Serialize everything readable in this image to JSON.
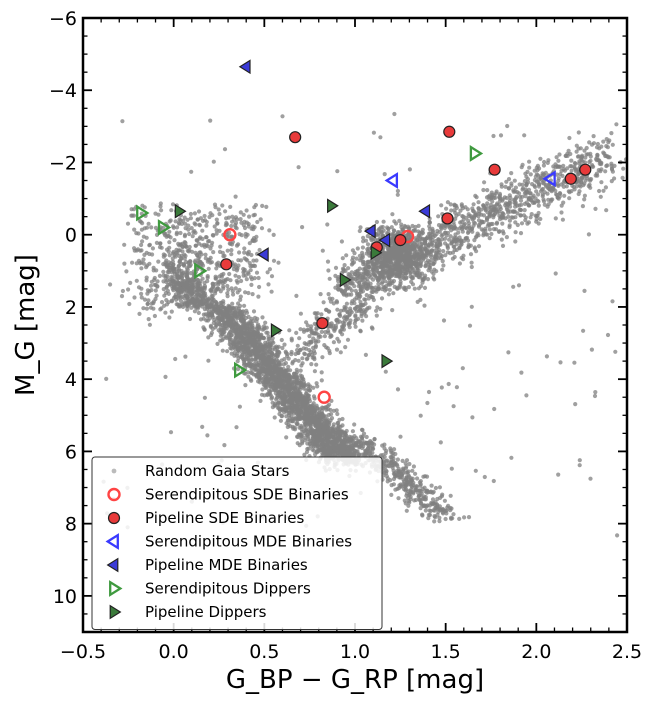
{
  "chart_data": {
    "type": "scatter",
    "title": "",
    "xlabel": "G_BP − G_RP [mag]",
    "ylabel": "M_G [mag]",
    "xlim": [
      -0.5,
      2.5
    ],
    "ylim": [
      11,
      -6
    ],
    "y_inverted": true,
    "grid": false,
    "legend_position": "lower-left",
    "xticks": [
      -0.5,
      0.0,
      0.5,
      1.0,
      1.5,
      2.0,
      2.5
    ],
    "xtick_labels": [
      "−0.5",
      "0.0",
      "0.5",
      "1.0",
      "1.5",
      "2.0",
      "2.5"
    ],
    "yticks": [
      -6,
      -4,
      -2,
      0,
      2,
      4,
      6,
      8,
      10
    ],
    "ytick_labels": [
      "−6",
      "−4",
      "−2",
      "0",
      "2",
      "4",
      "6",
      "8",
      "10"
    ],
    "background_population": {
      "name": "Random Gaia Stars",
      "color": "#808080",
      "description_regions": [
        {
          "label": "main sequence",
          "path": [
            [
              -0.05,
              0.2
            ],
            [
              0.2,
              1.2
            ],
            [
              0.5,
              2.6
            ],
            [
              0.7,
              3.8
            ],
            [
              0.85,
              4.6
            ],
            [
              1.05,
              5.8
            ],
            [
              1.3,
              6.8
            ],
            [
              1.6,
              7.4
            ]
          ]
        },
        {
          "label": "red clump / giant branch",
          "path": [
            [
              0.95,
              2.0
            ],
            [
              1.15,
              0.8
            ],
            [
              1.35,
              0.0
            ],
            [
              1.55,
              -0.8
            ],
            [
              1.8,
              -1.6
            ],
            [
              2.1,
              -2.0
            ],
            [
              2.45,
              -2.4
            ]
          ]
        },
        {
          "label": "upper main sequence",
          "path": [
            [
              -0.25,
              0.5
            ],
            [
              0.0,
              0.0
            ],
            [
              0.3,
              -0.6
            ]
          ]
        }
      ]
    },
    "series": [
      {
        "name": "Serendipitous SDE Binaries",
        "marker": "circle-open",
        "color": "#ff4444",
        "points": [
          [
            0.31,
            0.0
          ],
          [
            1.29,
            0.05
          ],
          [
            0.83,
            4.5
          ]
        ]
      },
      {
        "name": "Pipeline SDE Binaries",
        "marker": "circle-filled",
        "color": "#e83a3a",
        "points": [
          [
            0.67,
            -2.7
          ],
          [
            1.52,
            -2.85
          ],
          [
            1.77,
            -1.8
          ],
          [
            2.19,
            -1.55
          ],
          [
            2.27,
            -1.8
          ],
          [
            1.51,
            -0.45
          ],
          [
            1.25,
            0.15
          ],
          [
            1.12,
            0.35
          ],
          [
            0.29,
            0.82
          ],
          [
            0.82,
            2.45
          ]
        ]
      },
      {
        "name": "Serendipitous MDE Binaries",
        "marker": "triangle-left-open",
        "color": "#3a3aff",
        "points": [
          [
            1.21,
            -1.5
          ],
          [
            2.08,
            -1.55
          ]
        ]
      },
      {
        "name": "Pipeline MDE Binaries",
        "marker": "triangle-left-filled",
        "color": "#3a3ad8",
        "points": [
          [
            0.4,
            -4.65
          ],
          [
            1.39,
            -0.65
          ],
          [
            1.09,
            -0.1
          ],
          [
            1.17,
            0.15
          ],
          [
            0.5,
            0.55
          ]
        ]
      },
      {
        "name": "Serendipitous Dippers",
        "marker": "triangle-right-open",
        "color": "#3f9a3f",
        "points": [
          [
            1.66,
            -2.25
          ],
          [
            -0.18,
            -0.6
          ],
          [
            -0.06,
            -0.2
          ],
          [
            0.14,
            1.0
          ],
          [
            0.36,
            3.75
          ]
        ]
      },
      {
        "name": "Pipeline Dippers",
        "marker": "triangle-right-filled",
        "color": "#3a7a3a",
        "points": [
          [
            0.87,
            -0.8
          ],
          [
            0.03,
            -0.65
          ],
          [
            1.11,
            0.5
          ],
          [
            0.94,
            1.25
          ],
          [
            0.56,
            2.65
          ],
          [
            1.17,
            3.5
          ]
        ]
      }
    ]
  },
  "legend": {
    "items": [
      {
        "label": "Random Gaia Stars",
        "marker": "dot",
        "color": "#bbbbbb"
      },
      {
        "label": "Serendipitous SDE Binaries",
        "marker": "circle-open",
        "color": "#ff4444"
      },
      {
        "label": "Pipeline SDE Binaries",
        "marker": "circle-filled",
        "color": "#e83a3a"
      },
      {
        "label": "Serendipitous MDE Binaries",
        "marker": "triangle-left-open",
        "color": "#3a3aff"
      },
      {
        "label": "Pipeline MDE Binaries",
        "marker": "triangle-left-filled",
        "color": "#3a3ad8"
      },
      {
        "label": "Serendipitous Dippers",
        "marker": "triangle-right-open",
        "color": "#3f9a3f"
      },
      {
        "label": "Pipeline Dippers",
        "marker": "triangle-right-filled",
        "color": "#3a7a3a"
      }
    ]
  }
}
